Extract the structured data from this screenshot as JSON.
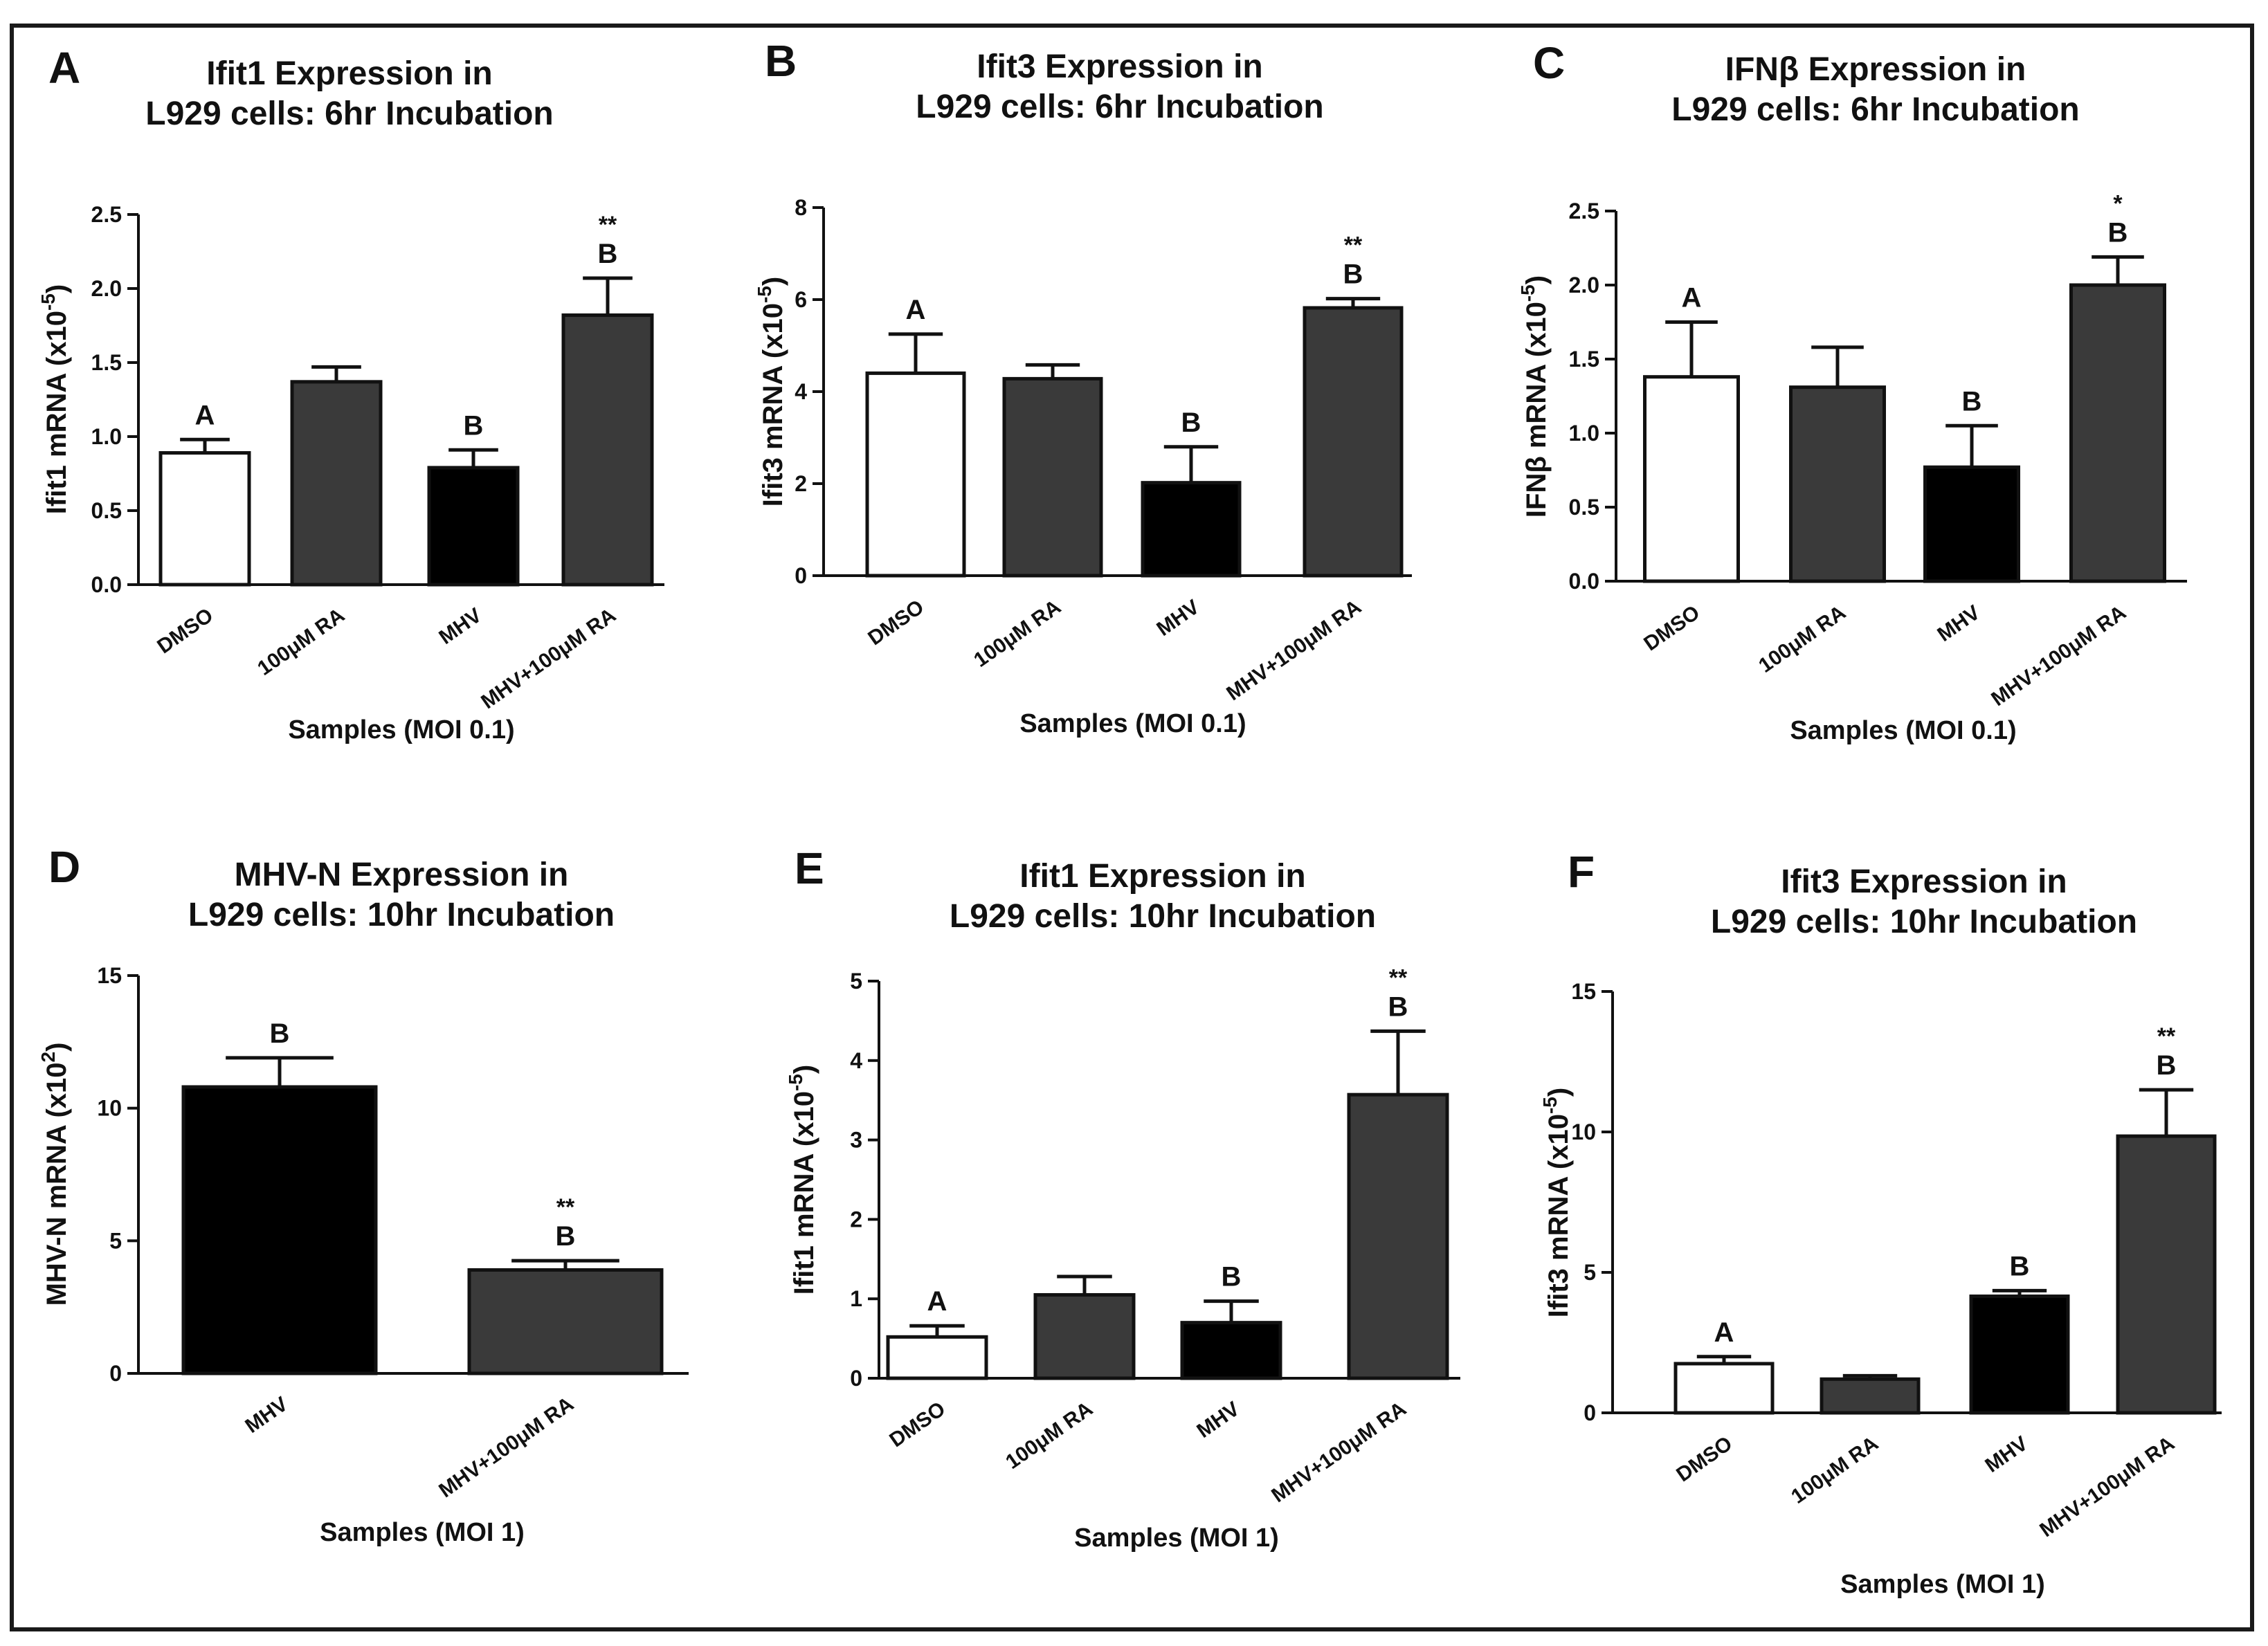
{
  "figure": {
    "frame_color": "#1a1a1a"
  },
  "chart_data": [
    {
      "panel": "A",
      "type": "bar",
      "title": [
        "Ifit1 Expression in",
        "L929 cells: 6hr Incubation"
      ],
      "ylabel": "Ifit1 mRNA (x10",
      "ylabel_exp": "-5",
      "ylabel_close": ")",
      "xlabel": "Samples (MOI 0.1)",
      "ylim": [
        0,
        2.5
      ],
      "yticks": [
        "0.0",
        "0.5",
        "1.0",
        "1.5",
        "2.0",
        "2.5"
      ],
      "yticks_val": [
        0,
        0.5,
        1.0,
        1.5,
        2.0,
        2.5
      ],
      "categories": [
        "DMSO",
        "100μM RA",
        "MHV",
        "MHV+100μM RA"
      ],
      "values": [
        0.89,
        1.37,
        0.79,
        1.82
      ],
      "errors": [
        0.09,
        0.1,
        0.12,
        0.25
      ],
      "fills": [
        "#ffffff",
        "#3a3a3a",
        "#000000",
        "#3a3a3a"
      ],
      "letters": [
        "A",
        "",
        "B",
        "B"
      ],
      "stars": [
        "",
        "",
        "",
        "**"
      ]
    },
    {
      "panel": "B",
      "type": "bar",
      "title": [
        "Ifit3 Expression in",
        "L929 cells: 6hr Incubation"
      ],
      "ylabel": "Ifit3 mRNA (x10",
      "ylabel_exp": "-5",
      "ylabel_close": ")",
      "xlabel": "Samples (MOI 0.1)",
      "ylim": [
        0,
        8
      ],
      "yticks": [
        "0",
        "2",
        "4",
        "6",
        "8"
      ],
      "yticks_val": [
        0,
        2,
        4,
        6,
        8
      ],
      "categories": [
        "DMSO",
        "100μM RA",
        "MHV",
        "MHV+100μM RA"
      ],
      "values": [
        4.4,
        4.28,
        2.02,
        5.82
      ],
      "errors": [
        0.85,
        0.3,
        0.78,
        0.2
      ],
      "fills": [
        "#ffffff",
        "#3a3a3a",
        "#000000",
        "#3a3a3a"
      ],
      "letters": [
        "A",
        "",
        "B",
        "B"
      ],
      "stars": [
        "",
        "",
        "",
        "**"
      ]
    },
    {
      "panel": "C",
      "type": "bar",
      "title": [
        "IFNβ Expression in",
        "L929 cells: 6hr Incubation"
      ],
      "ylabel": "IFNβ mRNA (x10",
      "ylabel_exp": "-5",
      "ylabel_close": ")",
      "xlabel": "Samples (MOI 0.1)",
      "ylim": [
        0,
        2.5
      ],
      "yticks": [
        "0.0",
        "0.5",
        "1.0",
        "1.5",
        "2.0",
        "2.5"
      ],
      "yticks_val": [
        0,
        0.5,
        1.0,
        1.5,
        2.0,
        2.5
      ],
      "categories": [
        "DMSO",
        "100μM RA",
        "MHV",
        "MHV+100μM RA"
      ],
      "values": [
        1.38,
        1.31,
        0.77,
        2.0
      ],
      "errors": [
        0.37,
        0.27,
        0.28,
        0.19
      ],
      "fills": [
        "#ffffff",
        "#3a3a3a",
        "#000000",
        "#3a3a3a"
      ],
      "letters": [
        "A",
        "",
        "B",
        "B"
      ],
      "stars": [
        "",
        "",
        "",
        "*"
      ]
    },
    {
      "panel": "D",
      "type": "bar",
      "title": [
        "MHV-N Expression in",
        "L929 cells: 10hr Incubation"
      ],
      "ylabel": "MHV-N mRNA (x10",
      "ylabel_exp": "2",
      "ylabel_close": ")",
      "xlabel": "Samples (MOI 1)",
      "ylim": [
        0,
        15
      ],
      "yticks": [
        "0",
        "5",
        "10",
        "15"
      ],
      "yticks_val": [
        0,
        5,
        10,
        15
      ],
      "categories": [
        "MHV",
        "MHV+100μM RA"
      ],
      "values": [
        10.8,
        3.9
      ],
      "errors": [
        1.1,
        0.35
      ],
      "fills": [
        "#000000",
        "#3a3a3a"
      ],
      "letters": [
        "B",
        "B"
      ],
      "stars": [
        "",
        "**"
      ]
    },
    {
      "panel": "E",
      "type": "bar",
      "title": [
        "Ifit1 Expression in",
        "L929 cells: 10hr Incubation"
      ],
      "ylabel": "Ifit1 mRNA (x10",
      "ylabel_exp": "-5",
      "ylabel_close": ")",
      "xlabel": "Samples (MOI 1)",
      "ylim": [
        0,
        5
      ],
      "yticks": [
        "0",
        "1",
        "2",
        "3",
        "4",
        "5"
      ],
      "yticks_val": [
        0,
        1,
        2,
        3,
        4,
        5
      ],
      "categories": [
        "DMSO",
        "100μM RA",
        "MHV",
        "MHV+100μM RA"
      ],
      "values": [
        0.52,
        1.05,
        0.7,
        3.57
      ],
      "errors": [
        0.14,
        0.23,
        0.27,
        0.8
      ],
      "fills": [
        "#ffffff",
        "#3a3a3a",
        "#000000",
        "#3a3a3a"
      ],
      "letters": [
        "A",
        "",
        "B",
        "B"
      ],
      "stars": [
        "",
        "",
        "",
        "**"
      ]
    },
    {
      "panel": "F",
      "type": "bar",
      "title": [
        "Ifit3 Expression in",
        "L929 cells: 10hr Incubation"
      ],
      "ylabel": "Ifit3 mRNA (x10",
      "ylabel_exp": "-5",
      "ylabel_close": ")",
      "xlabel": "Samples (MOI 1)",
      "ylim": [
        0,
        15
      ],
      "yticks": [
        "0",
        "5",
        "10",
        "15"
      ],
      "yticks_val": [
        0,
        5,
        10,
        15
      ],
      "categories": [
        "DMSO",
        "100μM RA",
        "MHV",
        "MHV+100μM RA"
      ],
      "values": [
        1.75,
        1.2,
        4.15,
        9.85
      ],
      "errors": [
        0.25,
        0.12,
        0.2,
        1.65
      ],
      "fills": [
        "#ffffff",
        "#3a3a3a",
        "#000000",
        "#3a3a3a"
      ],
      "letters": [
        "A",
        "",
        "B",
        "B"
      ],
      "stars": [
        "",
        "",
        "",
        "**"
      ]
    }
  ]
}
